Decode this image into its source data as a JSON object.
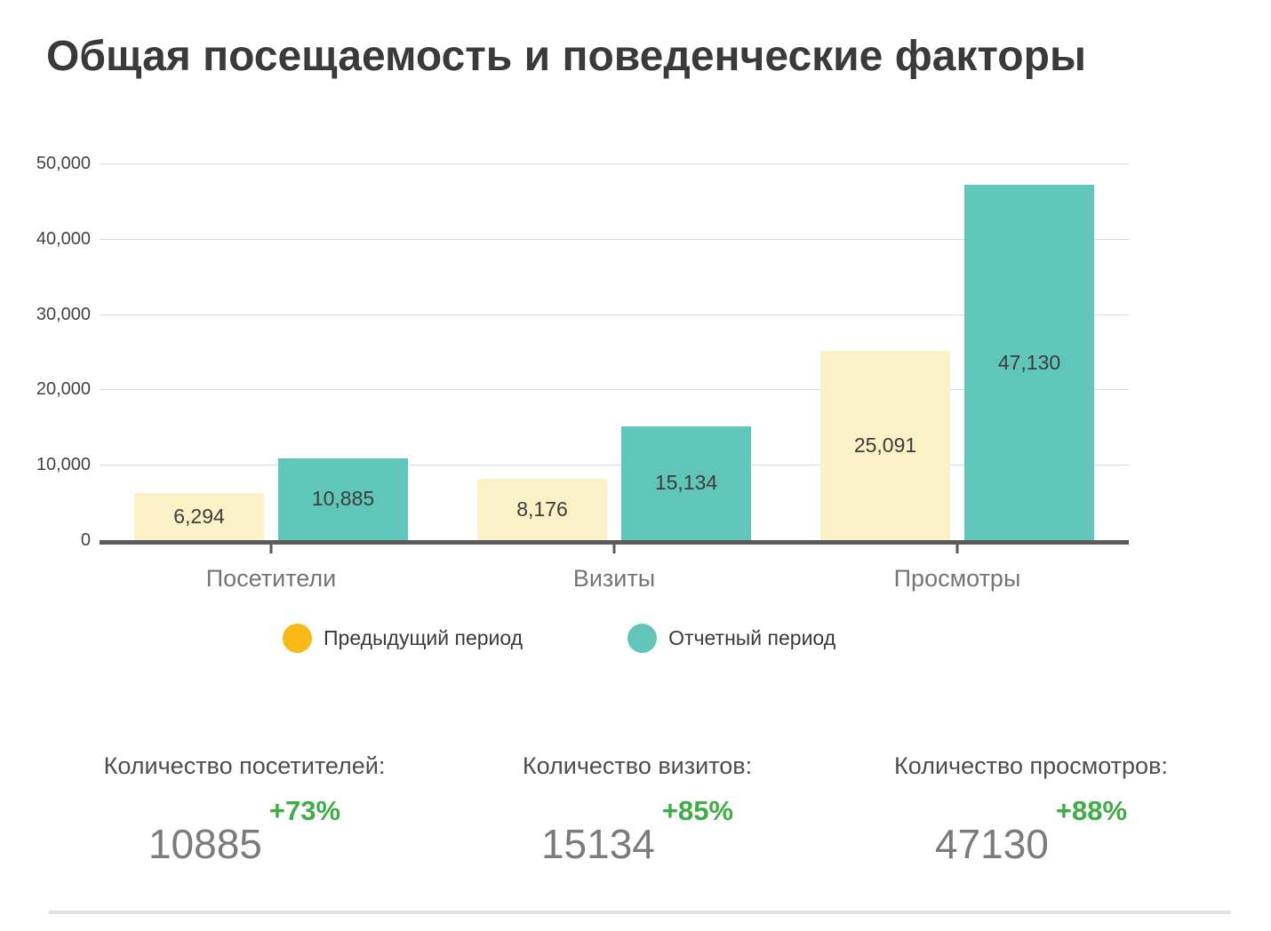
{
  "chart_data": {
    "type": "bar",
    "title": "Общая посещаемость и поведенческие факторы",
    "categories": [
      "Посетители",
      "Визиты",
      "Просмотры"
    ],
    "series": [
      {
        "name": "Предыдущий период",
        "marker_color": "#F9B816",
        "bar_color": "#FBF1C6",
        "values": [
          6294,
          8176,
          25091
        ],
        "value_labels": [
          "6,294",
          "8,176",
          "25,091"
        ]
      },
      {
        "name": "Отчетный период",
        "marker_color": "#5FC6B9",
        "bar_color": "#5FC6B9",
        "values": [
          10885,
          15134,
          47130
        ],
        "value_labels": [
          "10,885",
          "15,134",
          "47,130"
        ]
      }
    ],
    "xlabel": "",
    "ylabel": "",
    "ylim": [
      0,
      50000
    ],
    "yticks": [
      0,
      10000,
      20000,
      30000,
      40000,
      50000
    ],
    "ytick_labels": [
      "0",
      "10,000",
      "20,000",
      "30,000",
      "40,000",
      "50,000"
    ],
    "grid": true,
    "legend_position": "bottom"
  },
  "stats": [
    {
      "label": "Количество посетителей:",
      "value": "10885",
      "delta": "+73%"
    },
    {
      "label": "Количество визитов:",
      "value": "15134",
      "delta": "+85%"
    },
    {
      "label": "Количество просмотров:",
      "value": "47130",
      "delta": "+88%"
    }
  ],
  "colors": {
    "delta_green": "#3FAC45",
    "axis": "#595A5C",
    "grid": "#D9D9D9"
  }
}
